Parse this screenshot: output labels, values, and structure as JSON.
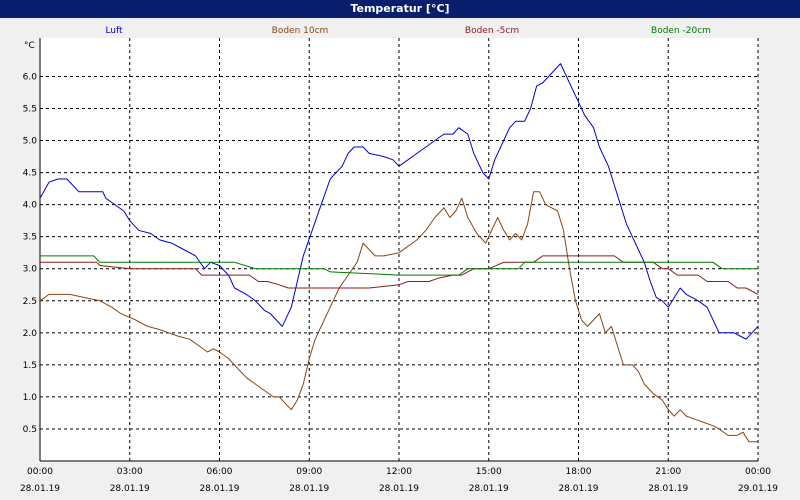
{
  "window": {
    "title": "Temperatur [°C]"
  },
  "colors": {
    "background": "#f0f0f0",
    "plot": "#ffffff",
    "grid": "#000000",
    "title_bar": "#0a1e6e"
  },
  "chart_data": {
    "type": "line",
    "title": "Temperatur [°C]",
    "ylabel": "°C",
    "ylim": [
      0,
      6.6
    ],
    "yticks": [
      0.5,
      1.0,
      1.5,
      2.0,
      2.5,
      3.0,
      3.5,
      4.0,
      4.5,
      5.0,
      5.5,
      6.0
    ],
    "xlim": [
      0,
      24
    ],
    "xticks": [
      {
        "t": 0,
        "time": "00:00",
        "date": "28.01.19"
      },
      {
        "t": 3,
        "time": "03:00",
        "date": "28.01.19"
      },
      {
        "t": 6,
        "time": "06:00",
        "date": "28.01.19"
      },
      {
        "t": 9,
        "time": "09:00",
        "date": "28.01.19"
      },
      {
        "t": 12,
        "time": "12:00",
        "date": "28.01.19"
      },
      {
        "t": 15,
        "time": "15:00",
        "date": "28.01.19"
      },
      {
        "t": 18,
        "time": "18:00",
        "date": "28.01.19"
      },
      {
        "t": 21,
        "time": "21:00",
        "date": "28.01.19"
      },
      {
        "t": 24,
        "time": "00:00",
        "date": "29.01.19"
      }
    ],
    "grid": true,
    "legend_position": "top",
    "series": [
      {
        "name": "Luft",
        "color": "#0000cc",
        "points": [
          [
            0,
            4.1
          ],
          [
            0.3,
            4.35
          ],
          [
            0.6,
            4.4
          ],
          [
            0.9,
            4.4
          ],
          [
            1.1,
            4.3
          ],
          [
            1.3,
            4.2
          ],
          [
            2.0,
            4.2
          ],
          [
            2.1,
            4.2
          ],
          [
            2.2,
            4.1
          ],
          [
            2.5,
            4.0
          ],
          [
            2.8,
            3.9
          ],
          [
            3.0,
            3.75
          ],
          [
            3.3,
            3.6
          ],
          [
            3.7,
            3.55
          ],
          [
            4.0,
            3.45
          ],
          [
            4.4,
            3.4
          ],
          [
            4.8,
            3.3
          ],
          [
            5.2,
            3.2
          ],
          [
            5.5,
            3.0
          ],
          [
            5.7,
            3.1
          ],
          [
            6.0,
            3.05
          ],
          [
            6.3,
            2.9
          ],
          [
            6.5,
            2.7
          ],
          [
            6.9,
            2.6
          ],
          [
            7.2,
            2.5
          ],
          [
            7.5,
            2.35
          ],
          [
            7.7,
            2.3
          ],
          [
            7.9,
            2.2
          ],
          [
            8.1,
            2.1
          ],
          [
            8.4,
            2.4
          ],
          [
            8.6,
            2.8
          ],
          [
            8.8,
            3.2
          ],
          [
            9.1,
            3.6
          ],
          [
            9.4,
            4.0
          ],
          [
            9.7,
            4.4
          ],
          [
            10.1,
            4.6
          ],
          [
            10.3,
            4.8
          ],
          [
            10.5,
            4.9
          ],
          [
            10.8,
            4.9
          ],
          [
            11.0,
            4.8
          ],
          [
            11.5,
            4.75
          ],
          [
            11.8,
            4.7
          ],
          [
            12.0,
            4.6
          ],
          [
            12.3,
            4.7
          ],
          [
            12.6,
            4.8
          ],
          [
            12.9,
            4.9
          ],
          [
            13.2,
            5.0
          ],
          [
            13.5,
            5.1
          ],
          [
            13.8,
            5.1
          ],
          [
            14.0,
            5.2
          ],
          [
            14.3,
            5.1
          ],
          [
            14.5,
            4.8
          ],
          [
            14.8,
            4.5
          ],
          [
            15.0,
            4.4
          ],
          [
            15.2,
            4.7
          ],
          [
            15.5,
            5.0
          ],
          [
            15.7,
            5.2
          ],
          [
            15.9,
            5.3
          ],
          [
            16.2,
            5.3
          ],
          [
            16.4,
            5.5
          ],
          [
            16.6,
            5.85
          ],
          [
            16.8,
            5.9
          ],
          [
            17.0,
            6.0
          ],
          [
            17.2,
            6.1
          ],
          [
            17.4,
            6.2
          ],
          [
            17.6,
            6.0
          ],
          [
            17.8,
            5.8
          ],
          [
            18.0,
            5.6
          ],
          [
            18.2,
            5.4
          ],
          [
            18.5,
            5.2
          ],
          [
            18.7,
            4.9
          ],
          [
            19.0,
            4.6
          ],
          [
            19.2,
            4.3
          ],
          [
            19.4,
            4.0
          ],
          [
            19.6,
            3.7
          ],
          [
            19.8,
            3.5
          ],
          [
            20.0,
            3.3
          ],
          [
            20.2,
            3.1
          ],
          [
            20.4,
            2.8
          ],
          [
            20.6,
            2.55
          ],
          [
            20.8,
            2.5
          ],
          [
            21.0,
            2.4
          ],
          [
            21.2,
            2.55
          ],
          [
            21.4,
            2.7
          ],
          [
            21.6,
            2.6
          ],
          [
            21.8,
            2.55
          ],
          [
            22.0,
            2.5
          ],
          [
            22.3,
            2.4
          ],
          [
            22.5,
            2.2
          ],
          [
            22.7,
            2.0
          ],
          [
            22.9,
            2.0
          ],
          [
            23.2,
            2.0
          ],
          [
            23.4,
            1.95
          ],
          [
            23.6,
            1.9
          ],
          [
            23.8,
            2.0
          ],
          [
            24.0,
            2.1
          ]
        ]
      },
      {
        "name": "Boden 10cm",
        "color": "#8b4513",
        "points": [
          [
            0,
            2.5
          ],
          [
            0.3,
            2.6
          ],
          [
            1.0,
            2.6
          ],
          [
            1.5,
            2.55
          ],
          [
            2.0,
            2.5
          ],
          [
            2.4,
            2.4
          ],
          [
            2.7,
            2.3
          ],
          [
            3.2,
            2.2
          ],
          [
            3.6,
            2.1
          ],
          [
            4.0,
            2.05
          ],
          [
            4.3,
            2.0
          ],
          [
            4.6,
            1.95
          ],
          [
            5.0,
            1.9
          ],
          [
            5.3,
            1.8
          ],
          [
            5.6,
            1.7
          ],
          [
            5.8,
            1.75
          ],
          [
            6.0,
            1.7
          ],
          [
            6.3,
            1.6
          ],
          [
            6.6,
            1.45
          ],
          [
            6.9,
            1.3
          ],
          [
            7.2,
            1.2
          ],
          [
            7.5,
            1.1
          ],
          [
            7.8,
            1.0
          ],
          [
            8.0,
            1.0
          ],
          [
            8.2,
            0.9
          ],
          [
            8.4,
            0.8
          ],
          [
            8.6,
            0.95
          ],
          [
            8.8,
            1.2
          ],
          [
            9.0,
            1.6
          ],
          [
            9.2,
            1.9
          ],
          [
            9.5,
            2.2
          ],
          [
            9.8,
            2.5
          ],
          [
            10.0,
            2.7
          ],
          [
            10.3,
            2.9
          ],
          [
            10.6,
            3.1
          ],
          [
            10.8,
            3.4
          ],
          [
            11.0,
            3.3
          ],
          [
            11.2,
            3.2
          ],
          [
            11.5,
            3.2
          ],
          [
            12.0,
            3.25
          ],
          [
            12.3,
            3.35
          ],
          [
            12.6,
            3.45
          ],
          [
            12.9,
            3.6
          ],
          [
            13.2,
            3.8
          ],
          [
            13.5,
            3.95
          ],
          [
            13.7,
            3.8
          ],
          [
            13.9,
            3.9
          ],
          [
            14.1,
            4.1
          ],
          [
            14.3,
            3.8
          ],
          [
            14.6,
            3.55
          ],
          [
            14.9,
            3.4
          ],
          [
            15.1,
            3.6
          ],
          [
            15.3,
            3.8
          ],
          [
            15.5,
            3.6
          ],
          [
            15.7,
            3.45
          ],
          [
            15.9,
            3.55
          ],
          [
            16.1,
            3.45
          ],
          [
            16.3,
            3.7
          ],
          [
            16.5,
            4.2
          ],
          [
            16.7,
            4.2
          ],
          [
            16.9,
            4.0
          ],
          [
            17.1,
            3.95
          ],
          [
            17.3,
            3.9
          ],
          [
            17.5,
            3.6
          ],
          [
            17.7,
            3.0
          ],
          [
            17.9,
            2.5
          ],
          [
            18.1,
            2.2
          ],
          [
            18.3,
            2.1
          ],
          [
            18.5,
            2.2
          ],
          [
            18.7,
            2.3
          ],
          [
            18.9,
            2.0
          ],
          [
            19.1,
            2.1
          ],
          [
            19.3,
            1.8
          ],
          [
            19.5,
            1.5
          ],
          [
            19.8,
            1.5
          ],
          [
            20.0,
            1.4
          ],
          [
            20.2,
            1.2
          ],
          [
            20.5,
            1.05
          ],
          [
            20.8,
            0.95
          ],
          [
            21.0,
            0.8
          ],
          [
            21.2,
            0.7
          ],
          [
            21.4,
            0.8
          ],
          [
            21.6,
            0.7
          ],
          [
            21.9,
            0.65
          ],
          [
            22.2,
            0.6
          ],
          [
            22.5,
            0.55
          ],
          [
            22.7,
            0.5
          ],
          [
            23.0,
            0.4
          ],
          [
            23.3,
            0.4
          ],
          [
            23.5,
            0.45
          ],
          [
            23.7,
            0.3
          ],
          [
            24.0,
            0.3
          ]
        ]
      },
      {
        "name": "Boden -5cm",
        "color": "#8b1a1a",
        "points": [
          [
            0,
            3.1
          ],
          [
            1.9,
            3.1
          ],
          [
            2.0,
            3.05
          ],
          [
            3.0,
            3.0
          ],
          [
            5.2,
            3.0
          ],
          [
            5.4,
            2.9
          ],
          [
            6.0,
            2.9
          ],
          [
            7.0,
            2.9
          ],
          [
            7.3,
            2.8
          ],
          [
            7.6,
            2.8
          ],
          [
            8.0,
            2.75
          ],
          [
            8.3,
            2.7
          ],
          [
            11.0,
            2.7
          ],
          [
            12.0,
            2.75
          ],
          [
            12.3,
            2.8
          ],
          [
            13.0,
            2.8
          ],
          [
            13.3,
            2.85
          ],
          [
            13.8,
            2.9
          ],
          [
            14.1,
            2.9
          ],
          [
            14.5,
            3.0
          ],
          [
            15.0,
            3.0
          ],
          [
            15.5,
            3.1
          ],
          [
            16.5,
            3.1
          ],
          [
            16.8,
            3.2
          ],
          [
            18.0,
            3.2
          ],
          [
            18.2,
            3.2
          ],
          [
            19.2,
            3.2
          ],
          [
            19.5,
            3.1
          ],
          [
            20.5,
            3.1
          ],
          [
            20.8,
            3.0
          ],
          [
            21.0,
            3.0
          ],
          [
            21.3,
            2.9
          ],
          [
            22.0,
            2.9
          ],
          [
            22.3,
            2.8
          ],
          [
            23.0,
            2.8
          ],
          [
            23.3,
            2.7
          ],
          [
            23.6,
            2.7
          ],
          [
            24.0,
            2.6
          ]
        ]
      },
      {
        "name": "Boden -20cm",
        "color": "#007a00",
        "points": [
          [
            0,
            3.2
          ],
          [
            1.8,
            3.2
          ],
          [
            2.0,
            3.1
          ],
          [
            6.5,
            3.1
          ],
          [
            7.2,
            3.0
          ],
          [
            9.5,
            3.0
          ],
          [
            9.7,
            2.95
          ],
          [
            12.0,
            2.9
          ],
          [
            14.0,
            2.9
          ],
          [
            14.3,
            3.0
          ],
          [
            16.0,
            3.0
          ],
          [
            16.2,
            3.1
          ],
          [
            20.8,
            3.1
          ],
          [
            21.2,
            3.1
          ],
          [
            22.5,
            3.1
          ],
          [
            22.8,
            3.0
          ],
          [
            24.0,
            3.0
          ]
        ]
      }
    ]
  }
}
